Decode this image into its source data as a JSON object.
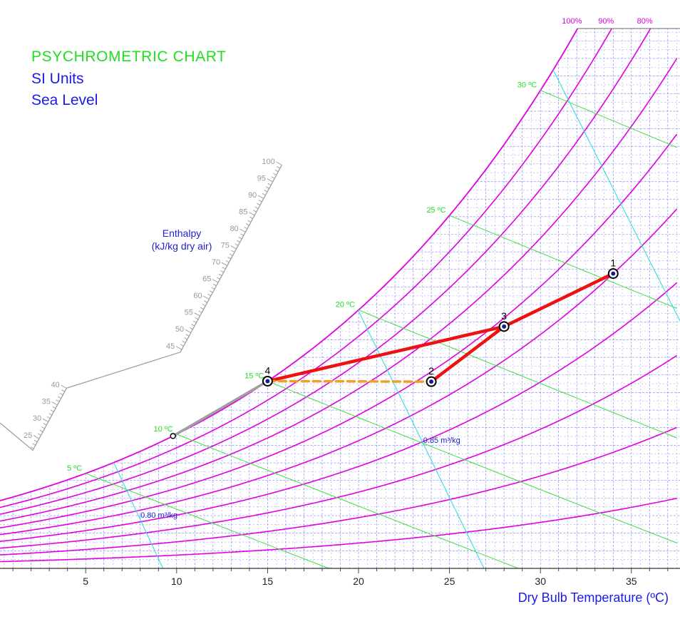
{
  "header": {
    "title": "PSYCHROMETRIC CHART",
    "subtitle_units": "SI Units",
    "subtitle_altitude": "Sea Level"
  },
  "enthalpy_label_line1": "Enthalpy",
  "enthalpy_label_line2": "(kJ/kg dry air)",
  "x_axis_label": "Dry Bulb Temperature (ºC)",
  "colors": {
    "rh_curves": "#e000e0",
    "wet_bulb_lines": "#44dd44",
    "volume_lines": "#33dddd",
    "grid": "#6666ff",
    "process": "#ee1111",
    "dashed_process": "#f0a020",
    "gray_process": "#a0a0a0",
    "enthalpy_scale": "#999999"
  },
  "chart_data": {
    "type": "psychrometric",
    "title": "PSYCHROMETRIC CHART",
    "xlabel": "Dry Bulb Temperature (ºC)",
    "xlim": [
      0,
      37.5
    ],
    "x_ticks": [
      5,
      10,
      15,
      20,
      25,
      30,
      35
    ],
    "rh_lines": [
      {
        "rh": 100,
        "label": "100%"
      },
      {
        "rh": 90,
        "label": "90%"
      },
      {
        "rh": 80,
        "label": "80%"
      },
      {
        "rh": 70,
        "label": ""
      },
      {
        "rh": 60,
        "label": ""
      },
      {
        "rh": 50,
        "label": ""
      },
      {
        "rh": 40,
        "label": ""
      },
      {
        "rh": 30,
        "label": ""
      },
      {
        "rh": 20,
        "label": ""
      },
      {
        "rh": 10,
        "label": ""
      }
    ],
    "wet_bulb_lines": [
      {
        "t": 5,
        "label": "5 ºC"
      },
      {
        "t": 10,
        "label": "10 ºC"
      },
      {
        "t": 15,
        "label": "15 ºC"
      },
      {
        "t": 20,
        "label": "20 ºC"
      },
      {
        "t": 25,
        "label": "25 ºC"
      },
      {
        "t": 30,
        "label": "30 ºC"
      }
    ],
    "volume_lines": [
      {
        "v": 0.8,
        "label": "0.80 m³/kg"
      },
      {
        "v": 0.85,
        "label": "0.85 m³/kg"
      },
      {
        "v": 0.9,
        "label": ""
      }
    ],
    "enthalpy_ticks": [
      25,
      30,
      35,
      40,
      45,
      50,
      55,
      60,
      65,
      70,
      75,
      80,
      85,
      90,
      95,
      100
    ],
    "points": [
      {
        "label": "1",
        "tdb": 34.0,
        "rh": 50
      },
      {
        "label": "2",
        "tdb": 24.0,
        "rh": 57
      },
      {
        "label": "3",
        "tdb": 28.0,
        "rh": 58
      },
      {
        "label": "4",
        "tdb": 15.0,
        "rh": 100
      },
      {
        "label": "",
        "tdb": 9.8,
        "rh": 100
      }
    ],
    "processes": [
      {
        "from": "1",
        "to": "3",
        "style": "solid",
        "color": "#ee1111"
      },
      {
        "from": "3",
        "to": "2",
        "style": "solid",
        "color": "#ee1111"
      },
      {
        "from": "3",
        "to": "4",
        "style": "solid",
        "color": "#ee1111"
      },
      {
        "from": "4",
        "to": "2",
        "style": "dashed",
        "color": "#f0a020"
      },
      {
        "from": "4",
        "to": "",
        "style": "solid",
        "color": "#a0a0a0"
      }
    ]
  }
}
